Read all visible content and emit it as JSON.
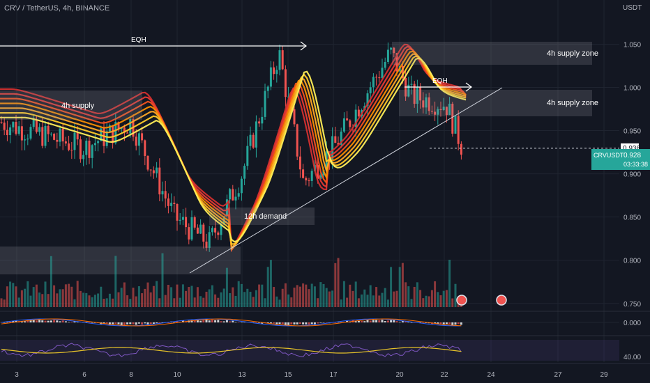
{
  "header": {
    "symbol_title": "CRV / TetherUS, 4h, BINANCE",
    "currency": "USDT"
  },
  "colors": {
    "bg": "#131722",
    "up": "#26a69a",
    "down": "#ef5350",
    "grid": "#1f2430",
    "text": "#b2b5be",
    "zone": "#2a2e39",
    "ticker_bg": "#26a69a"
  },
  "price_axis": {
    "ticks": [
      "1.050",
      "1.000",
      "0.950",
      "0.900",
      "0.850",
      "0.800",
      "0.750"
    ]
  },
  "time_axis": {
    "ticks": [
      "3",
      "6",
      "8",
      "10",
      "13",
      "15",
      "17",
      "20",
      "22",
      "24",
      "27",
      "29"
    ]
  },
  "macd_axis": {
    "tick": "0.000"
  },
  "rsi_axis": {
    "tick": "40.00"
  },
  "price_labels": {
    "eqh_level": "0.936",
    "ticker": "CRVUSDT",
    "last_price": "0.928",
    "countdown": "03:33:38"
  },
  "annotations": {
    "eqh_1": "EQH",
    "eqh_2": "EQH",
    "supply_left": "4h supply",
    "supply_zone_top": "4h supply zone",
    "supply_zone_mid": "4h supply zone",
    "demand_12h": "12h demand"
  },
  "chart_data": {
    "type": "candlestick",
    "symbol": "CRVUSDT",
    "interval": "4h",
    "y_range": [
      0.745,
      1.085
    ],
    "key_points": [
      {
        "date": "3",
        "price": 0.96
      },
      {
        "date": "6",
        "price": 0.93
      },
      {
        "date": "8",
        "price": 0.96
      },
      {
        "date": "10",
        "price": 0.85
      },
      {
        "date": "12",
        "price": 0.82
      },
      {
        "date": "13",
        "price": 0.9
      },
      {
        "date": "15",
        "price": 1.04
      },
      {
        "date": "16",
        "price": 0.89
      },
      {
        "date": "17",
        "price": 0.93
      },
      {
        "date": "19",
        "price": 1.04
      },
      {
        "date": "20",
        "price": 0.99
      },
      {
        "date": "22",
        "price": 0.98
      },
      {
        "date": "22",
        "price": 0.928
      }
    ],
    "last_price": 0.928,
    "eqh_level": 0.936
  }
}
